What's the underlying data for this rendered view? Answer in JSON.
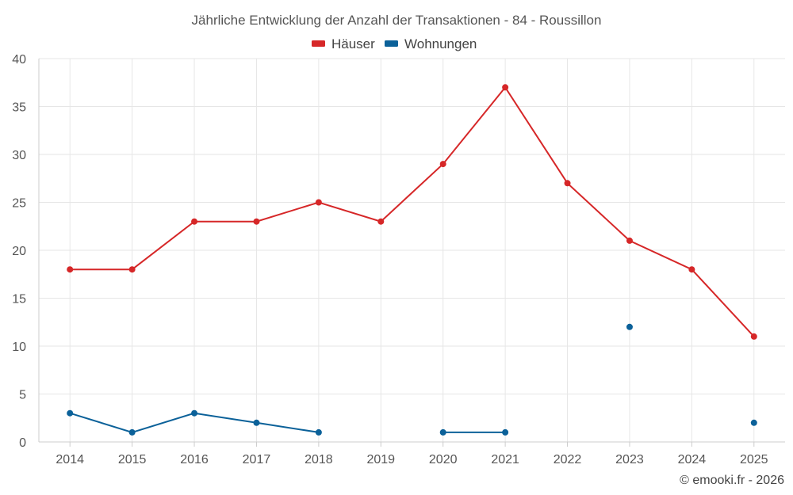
{
  "chart_data": {
    "type": "line",
    "title": "Jährliche Entwicklung der Anzahl der Transaktionen - 84 - Roussillon",
    "xlabel": "",
    "ylabel": "",
    "categories": [
      "2014",
      "2015",
      "2016",
      "2017",
      "2018",
      "2019",
      "2020",
      "2021",
      "2022",
      "2023",
      "2024",
      "2025"
    ],
    "ylim": [
      0,
      40
    ],
    "yticks": [
      0,
      5,
      10,
      15,
      20,
      25,
      30,
      35,
      40
    ],
    "grid": true,
    "legend_position": "top-center",
    "series": [
      {
        "name": "Häuser",
        "color": "#d62728",
        "values": [
          18,
          18,
          23,
          23,
          25,
          23,
          29,
          37,
          27,
          21,
          18,
          11
        ]
      },
      {
        "name": "Wohnungen",
        "color": "#0b6199",
        "values": [
          3,
          1,
          3,
          2,
          1,
          null,
          1,
          1,
          null,
          12,
          null,
          2
        ]
      }
    ]
  },
  "footer": {
    "copyright": "© emooki.fr - 2026"
  }
}
